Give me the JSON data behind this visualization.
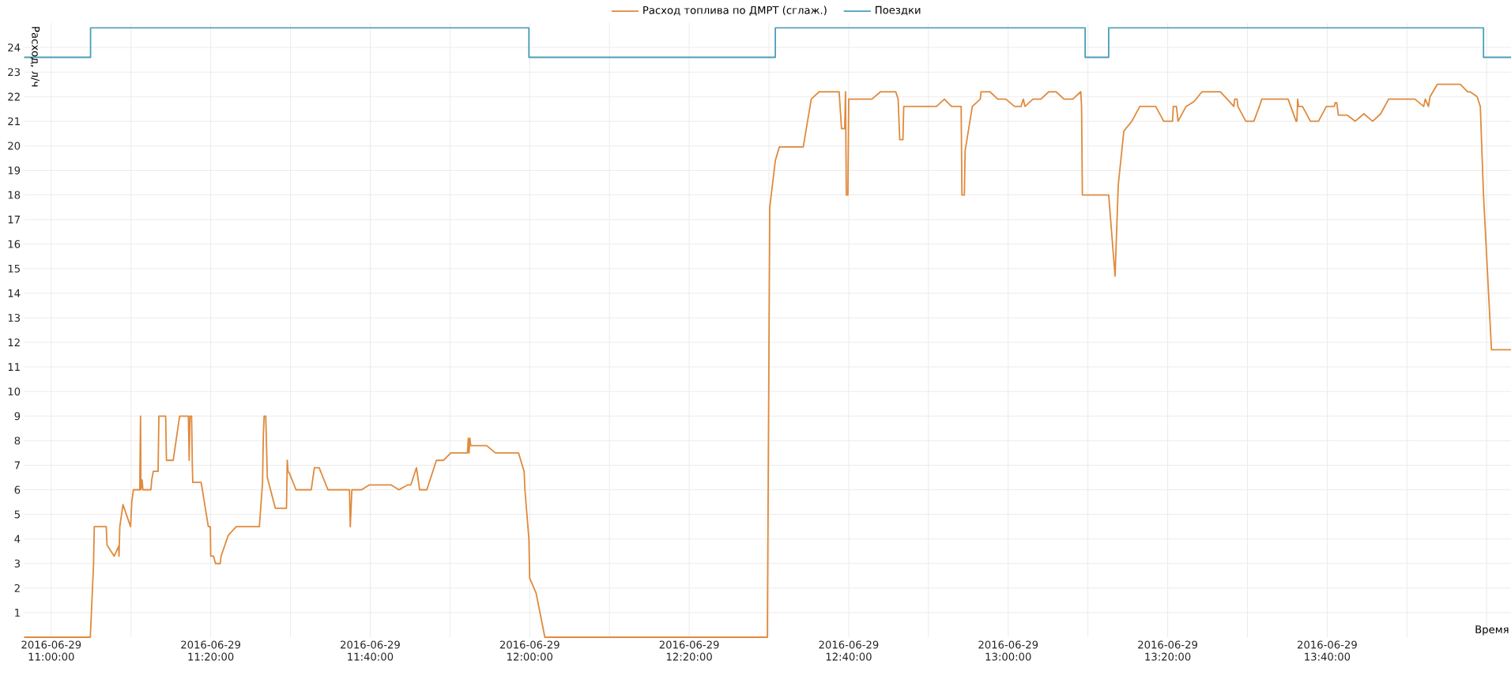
{
  "chart_data": {
    "type": "line",
    "xlabel": "Время",
    "ylabel": "Расход, л/ч",
    "xlim": [
      "2016-06-29T10:56:36",
      "2016-06-29T14:03:03"
    ],
    "ylim": [
      0,
      25
    ],
    "xticks": [
      {
        "value": "2016-06-29T11:00:00",
        "label": "2016-06-29 11:00:00"
      },
      {
        "value": "2016-06-29T11:10:00",
        "label": null
      },
      {
        "value": "2016-06-29T11:20:00",
        "label": "2016-06-29 11:20:00"
      },
      {
        "value": "2016-06-29T11:30:00",
        "label": null
      },
      {
        "value": "2016-06-29T11:40:00",
        "label": "2016-06-29 11:40:00"
      },
      {
        "value": "2016-06-29T11:50:00",
        "label": null
      },
      {
        "value": "2016-06-29T12:00:00",
        "label": "2016-06-29 12:00:00"
      },
      {
        "value": "2016-06-29T12:10:00",
        "label": null
      },
      {
        "value": "2016-06-29T12:20:00",
        "label": "2016-06-29 12:20:00"
      },
      {
        "value": "2016-06-29T12:30:00",
        "label": null
      },
      {
        "value": "2016-06-29T12:40:00",
        "label": "2016-06-29 12:40:00"
      },
      {
        "value": "2016-06-29T12:50:00",
        "label": null
      },
      {
        "value": "2016-06-29T13:00:00",
        "label": "2016-06-29 13:00:00"
      },
      {
        "value": "2016-06-29T13:10:00",
        "label": null
      },
      {
        "value": "2016-06-29T13:20:00",
        "label": "2016-06-29 13:20:00"
      },
      {
        "value": "2016-06-29T13:30:00",
        "label": null
      },
      {
        "value": "2016-06-29T13:40:00",
        "label": "2016-06-29 13:40:00"
      },
      {
        "value": "2016-06-29T13:50:00",
        "label": null
      },
      {
        "value": "2016-06-29T14:00:00",
        "label": null
      }
    ],
    "yticks": [
      1,
      2,
      3,
      4,
      5,
      6,
      7,
      8,
      9,
      10,
      11,
      12,
      13,
      14,
      15,
      16,
      17,
      18,
      19,
      20,
      21,
      22,
      23,
      24
    ],
    "grid": true,
    "legend": "top",
    "marker": "none",
    "line_style": "solid",
    "series": [
      {
        "name": "Расход топлива по ДМРТ (сглаж.)",
        "color": "#e08a3c",
        "x": [
          "2016-06-29T10:56:36",
          "2016-06-29T11:04:54",
          "2016-06-29T11:05:18",
          "2016-06-29T11:05:24",
          "2016-06-29T11:06:54",
          "2016-06-29T11:07:00",
          "2016-06-29T11:07:54",
          "2016-06-29T11:08:27",
          "2016-06-29T11:08:30",
          "2016-06-29T11:08:36",
          "2016-06-29T11:09:00",
          "2016-06-29T11:09:57",
          "2016-06-29T11:10:06",
          "2016-06-29T11:10:18",
          "2016-06-29T11:11:06",
          "2016-06-29T11:11:12",
          "2016-06-29T11:11:15",
          "2016-06-29T11:11:24",
          "2016-06-29T11:11:30",
          "2016-06-29T11:12:30",
          "2016-06-29T11:12:36",
          "2016-06-29T11:12:48",
          "2016-06-29T11:13:24",
          "2016-06-29T11:13:30",
          "2016-06-29T11:14:21",
          "2016-06-29T11:14:27",
          "2016-06-29T11:15:18",
          "2016-06-29T11:16:06",
          "2016-06-29T11:17:12",
          "2016-06-29T11:17:18",
          "2016-06-29T11:17:24",
          "2016-06-29T11:17:36",
          "2016-06-29T11:17:42",
          "2016-06-29T11:17:45",
          "2016-06-29T11:18:48",
          "2016-06-29T11:19:42",
          "2016-06-29T11:19:57",
          "2016-06-29T11:20:00",
          "2016-06-29T11:20:21",
          "2016-06-29T11:20:36",
          "2016-06-29T11:21:12",
          "2016-06-29T11:21:18",
          "2016-06-29T11:22:12",
          "2016-06-29T11:23:12",
          "2016-06-29T11:26:06",
          "2016-06-29T11:26:30",
          "2016-06-29T11:26:36",
          "2016-06-29T11:26:42",
          "2016-06-29T11:26:54",
          "2016-06-29T11:27:00",
          "2016-06-29T11:27:06",
          "2016-06-29T11:28:06",
          "2016-06-29T11:29:30",
          "2016-06-29T11:29:36",
          "2016-06-29T11:29:42",
          "2016-06-29T11:29:54",
          "2016-06-29T11:30:42",
          "2016-06-29T11:32:36",
          "2016-06-29T11:33:00",
          "2016-06-29T11:33:36",
          "2016-06-29T11:34:42",
          "2016-06-29T11:37:24",
          "2016-06-29T11:37:30",
          "2016-06-29T11:37:42",
          "2016-06-29T11:38:54",
          "2016-06-29T11:39:54",
          "2016-06-29T11:42:36",
          "2016-06-29T11:43:36",
          "2016-06-29T11:44:42",
          "2016-06-29T11:45:06",
          "2016-06-29T11:45:48",
          "2016-06-29T11:46:12",
          "2016-06-29T11:47:06",
          "2016-06-29T11:48:18",
          "2016-06-29T11:49:12",
          "2016-06-29T11:50:06",
          "2016-06-29T11:52:12",
          "2016-06-29T11:52:18",
          "2016-06-29T11:52:24",
          "2016-06-29T11:52:30",
          "2016-06-29T11:52:36",
          "2016-06-29T11:54:36",
          "2016-06-29T11:55:42",
          "2016-06-29T11:58:36",
          "2016-06-29T11:59:18",
          "2016-06-29T11:59:24",
          "2016-06-29T11:59:54",
          "2016-06-29T12:00:00",
          "2016-06-29T12:00:48",
          "2016-06-29T12:01:54",
          "2016-06-29T12:29:48",
          "2016-06-29T12:30:06",
          "2016-06-29T12:30:48",
          "2016-06-29T12:31:18",
          "2016-06-29T12:34:18",
          "2016-06-29T12:35:18",
          "2016-06-29T12:36:18",
          "2016-06-29T12:38:48",
          "2016-06-29T12:39:06",
          "2016-06-29T12:39:30",
          "2016-06-29T12:39:36",
          "2016-06-29T12:39:42",
          "2016-06-29T12:39:54",
          "2016-06-29T12:40:00",
          "2016-06-29T12:42:54",
          "2016-06-29T12:44:00",
          "2016-06-29T12:45:54",
          "2016-06-29T12:46:12",
          "2016-06-29T12:46:24",
          "2016-06-29T12:46:48",
          "2016-06-29T12:46:54",
          "2016-06-29T12:51:00",
          "2016-06-29T12:52:00",
          "2016-06-29T12:52:54",
          "2016-06-29T12:54:06",
          "2016-06-29T12:54:12",
          "2016-06-29T12:54:30",
          "2016-06-29T12:54:36",
          "2016-06-29T12:55:30",
          "2016-06-29T12:56:30",
          "2016-06-29T12:56:36",
          "2016-06-29T12:57:42",
          "2016-06-29T12:58:42",
          "2016-06-29T12:59:42",
          "2016-06-29T13:00:48",
          "2016-06-29T13:01:36",
          "2016-06-29T13:01:54",
          "2016-06-29T13:02:06",
          "2016-06-29T13:03:06",
          "2016-06-29T13:04:06",
          "2016-06-29T13:05:06",
          "2016-06-29T13:06:00",
          "2016-06-29T13:07:00",
          "2016-06-29T13:08:06",
          "2016-06-29T13:09:06",
          "2016-06-29T13:09:12",
          "2016-06-29T13:09:18",
          "2016-06-29T13:12:36",
          "2016-06-29T13:13:24",
          "2016-06-29T13:13:48",
          "2016-06-29T13:14:30",
          "2016-06-29T13:15:30",
          "2016-06-29T13:16:30",
          "2016-06-29T13:18:30",
          "2016-06-29T13:19:30",
          "2016-06-29T13:20:36",
          "2016-06-29T13:20:42",
          "2016-06-29T13:21:06",
          "2016-06-29T13:21:18",
          "2016-06-29T13:22:18",
          "2016-06-29T13:23:18",
          "2016-06-29T13:24:18",
          "2016-06-29T13:26:36",
          "2016-06-29T13:27:36",
          "2016-06-29T13:28:18",
          "2016-06-29T13:28:24",
          "2016-06-29T13:28:42",
          "2016-06-29T13:28:48",
          "2016-06-29T13:29:48",
          "2016-06-29T13:30:48",
          "2016-06-29T13:31:30",
          "2016-06-29T13:31:48",
          "2016-06-29T13:35:06",
          "2016-06-29T13:36:06",
          "2016-06-29T13:36:12",
          "2016-06-29T13:36:18",
          "2016-06-29T13:36:24",
          "2016-06-29T13:36:54",
          "2016-06-29T13:37:54",
          "2016-06-29T13:38:54",
          "2016-06-29T13:39:54",
          "2016-06-29T13:40:54",
          "2016-06-29T13:41:00",
          "2016-06-29T13:41:12",
          "2016-06-29T13:41:24",
          "2016-06-29T13:42:30",
          "2016-06-29T13:43:30",
          "2016-06-29T13:44:36",
          "2016-06-29T13:45:42",
          "2016-06-29T13:46:42",
          "2016-06-29T13:47:42",
          "2016-06-29T13:51:00",
          "2016-06-29T13:52:06",
          "2016-06-29T13:52:18",
          "2016-06-29T13:52:42",
          "2016-06-29T13:52:54",
          "2016-06-29T13:53:48",
          "2016-06-29T13:56:42",
          "2016-06-29T13:57:36",
          "2016-06-29T13:57:54",
          "2016-06-29T13:58:48",
          "2016-06-29T13:59:12",
          "2016-06-29T13:59:36",
          "2016-06-29T14:00:36",
          "2016-06-29T14:03:03"
        ],
        "values": [
          0,
          0,
          2.9,
          4.5,
          4.5,
          3.75,
          3.3,
          3.7,
          3.3,
          4.5,
          5.4,
          4.5,
          5.5,
          6.0,
          6.0,
          9.0,
          6.0,
          6.4,
          6.0,
          6.0,
          6.4,
          6.75,
          6.75,
          9.0,
          9.0,
          7.2,
          7.2,
          9.0,
          9.0,
          7.2,
          9.0,
          9.0,
          6.9,
          6.3,
          6.3,
          4.5,
          4.5,
          3.3,
          3.3,
          3.0,
          3.0,
          3.3,
          4.15,
          4.5,
          4.5,
          6.3,
          8.25,
          9.0,
          9.0,
          7.75,
          6.5,
          5.25,
          5.25,
          7.2,
          6.75,
          6.65,
          6.0,
          6.0,
          6.9,
          6.9,
          6.0,
          6.0,
          4.5,
          6.0,
          6.0,
          6.2,
          6.2,
          6.0,
          6.2,
          6.2,
          6.9,
          6.0,
          6.0,
          7.2,
          7.2,
          7.5,
          7.5,
          8.1,
          7.5,
          8.1,
          7.8,
          7.8,
          7.5,
          7.5,
          6.75,
          6.0,
          4.0,
          2.4,
          1.8,
          0,
          0,
          17.5,
          19.4,
          19.95,
          19.95,
          21.9,
          22.2,
          22.2,
          20.7,
          20.7,
          22.2,
          18.0,
          18.0,
          21.9,
          21.9,
          22.2,
          22.2,
          21.9,
          20.25,
          20.25,
          21.6,
          21.6,
          21.9,
          21.6,
          21.6,
          18.0,
          18.0,
          19.8,
          21.6,
          21.9,
          22.2,
          22.2,
          21.9,
          21.9,
          21.6,
          21.6,
          21.9,
          21.6,
          21.9,
          21.9,
          22.2,
          22.2,
          21.9,
          21.9,
          22.2,
          21.6,
          18.0,
          18.0,
          14.7,
          18.4,
          20.6,
          21.0,
          21.6,
          21.6,
          21.0,
          21.0,
          21.6,
          21.6,
          21.0,
          21.6,
          21.8,
          22.2,
          22.2,
          21.85,
          21.6,
          21.9,
          21.9,
          21.6,
          21.0,
          21.0,
          21.6,
          21.9,
          21.9,
          21.0,
          21.0,
          21.9,
          21.6,
          21.6,
          21.0,
          21.0,
          21.6,
          21.6,
          21.75,
          21.75,
          21.25,
          21.25,
          21.0,
          21.3,
          21.0,
          21.3,
          21.9,
          21.9,
          21.6,
          21.9,
          21.6,
          22.0,
          22.5,
          22.5,
          22.2,
          22.2,
          22.0,
          21.6,
          18.0,
          11.7,
          11.7
        ]
      },
      {
        "name": "Поездки",
        "color": "#4a9fb8",
        "type": "step",
        "x": [
          "2016-06-29T10:56:36",
          "2016-06-29T11:04:56",
          "2016-06-29T11:59:54",
          "2016-06-29T12:30:48",
          "2016-06-29T13:09:39",
          "2016-06-29T13:12:36",
          "2016-06-29T13:59:36",
          "2016-06-29T14:03:03"
        ],
        "values": [
          23.6,
          24.8,
          23.6,
          24.8,
          23.6,
          24.8,
          23.6,
          23.6
        ]
      }
    ]
  }
}
